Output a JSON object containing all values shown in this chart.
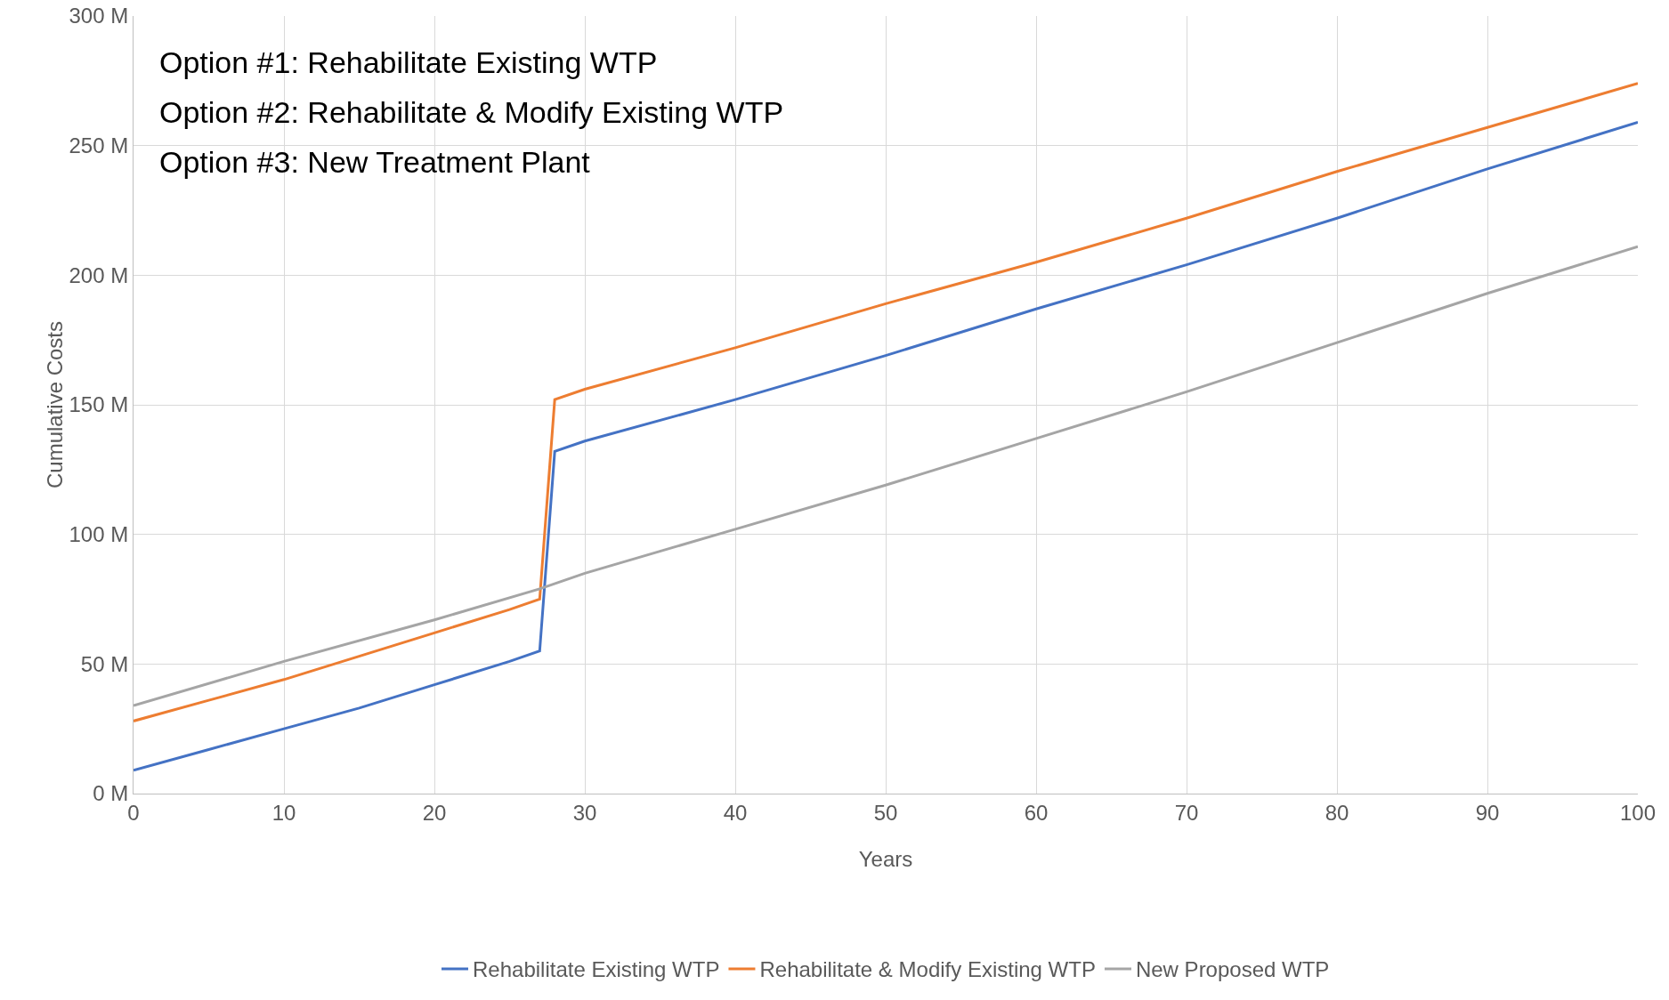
{
  "chart_data": {
    "type": "line",
    "xlabel": "Years",
    "ylabel": "Cumulative Costs",
    "annotations": [
      "Option #1: Rehabilitate Existing WTP",
      "Option #2: Rehabilitate & Modify Existing WTP",
      "Option #3: New Treatment Plant"
    ],
    "xlim": [
      0,
      100
    ],
    "xticks": [
      0,
      10,
      20,
      30,
      40,
      50,
      60,
      70,
      80,
      90,
      100
    ],
    "ylim": [
      0,
      300
    ],
    "yticks": [
      {
        "value": 0,
        "label": "0 M"
      },
      {
        "value": 50,
        "label": "50 M"
      },
      {
        "value": 100,
        "label": "100 M"
      },
      {
        "value": 150,
        "label": "150 M"
      },
      {
        "value": 200,
        "label": "200 M"
      },
      {
        "value": 250,
        "label": "250 M"
      },
      {
        "value": 300,
        "label": "300 M"
      }
    ],
    "grid": true,
    "legend": "bottom",
    "marker": "none",
    "line_style": "solid",
    "series": [
      {
        "name": "Rehabilitate Existing WTP",
        "color": "#4472c4",
        "x": [
          0,
          5,
          10,
          15,
          20,
          25,
          27,
          28,
          30,
          40,
          50,
          60,
          70,
          80,
          90,
          100
        ],
        "values": [
          9,
          17,
          25,
          33,
          42,
          51,
          55,
          132,
          136,
          152,
          169,
          187,
          204,
          222,
          241,
          259
        ]
      },
      {
        "name": "Rehabilitate & Modify Existing WTP",
        "color": "#ed7d31",
        "x": [
          0,
          5,
          10,
          15,
          20,
          25,
          27,
          28,
          30,
          40,
          50,
          60,
          70,
          80,
          90,
          100
        ],
        "values": [
          28,
          36,
          44,
          53,
          62,
          71,
          75,
          152,
          156,
          172,
          189,
          205,
          222,
          240,
          257,
          274
        ]
      },
      {
        "name": "New Proposed WTP",
        "color": "#a5a5a5",
        "x": [
          0,
          10,
          20,
          27,
          30,
          40,
          50,
          60,
          70,
          80,
          90,
          100
        ],
        "values": [
          34,
          51,
          67,
          79,
          85,
          102,
          119,
          137,
          155,
          174,
          193,
          211
        ]
      }
    ]
  }
}
